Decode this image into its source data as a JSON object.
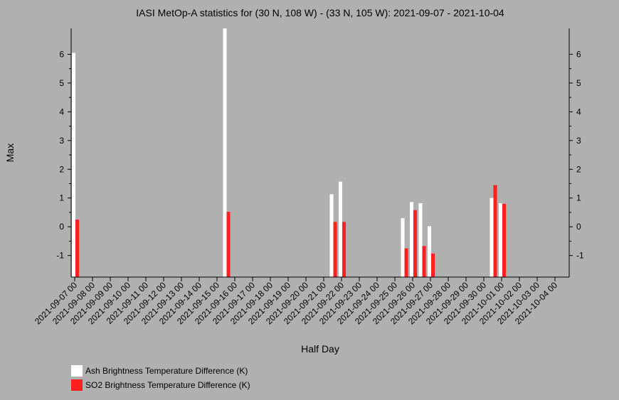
{
  "chart_data": {
    "type": "bar",
    "title": "IASI MetOp-A statistics for (30 N, 108 W) - (33 N, 105 W): 2021-09-07 - 2021-10-04",
    "xlabel": "Half Day",
    "ylabel": "Max",
    "ylim": [
      -1.75,
      6.9
    ],
    "yticks": [
      -1,
      0,
      1,
      2,
      3,
      4,
      5,
      6
    ],
    "grid": false,
    "legend_position": "bottom-left",
    "x_tick_labels": [
      "2021-09-07 00",
      "2021-09-08 00",
      "2021-09-09 00",
      "2021-09-10 00",
      "2021-09-11 00",
      "2021-09-12 00",
      "2021-09-13 00",
      "2021-09-14 00",
      "2021-09-15 00",
      "2021-09-16 00",
      "2021-09-17 00",
      "2021-09-18 00",
      "2021-09-19 00",
      "2021-09-20 00",
      "2021-09-21 00",
      "2021-09-22 00",
      "2021-09-23 00",
      "2021-09-24 00",
      "2021-09-25 00",
      "2021-09-26 00",
      "2021-09-27 00",
      "2021-09-28 00",
      "2021-09-29 00",
      "2021-09-30 00",
      "2021-10-01 00",
      "2021-10-02 00",
      "2021-10-03 00",
      "2021-10-04 00"
    ],
    "series": [
      {
        "name": "Ash Brightness Temperature Difference (K)",
        "color": "#ffffff",
        "points": [
          {
            "x": "2021-09-07 00",
            "y": 6.05
          },
          {
            "x": "2021-09-15 12",
            "y": 6.9
          },
          {
            "x": "2021-09-21 12",
            "y": 1.13
          },
          {
            "x": "2021-09-22 00",
            "y": 1.57
          },
          {
            "x": "2021-09-25 12",
            "y": 0.3
          },
          {
            "x": "2021-09-26 00",
            "y": 0.86
          },
          {
            "x": "2021-09-26 12",
            "y": 0.82
          },
          {
            "x": "2021-09-27 00",
            "y": 0.02
          },
          {
            "x": "2021-09-30 12",
            "y": 1.0
          },
          {
            "x": "2021-10-01 00",
            "y": 0.82
          }
        ]
      },
      {
        "name": "SO2 Brightness Temperature Difference (K)",
        "color": "#ff2020",
        "points": [
          {
            "x": "2021-09-07 00",
            "y": 0.25
          },
          {
            "x": "2021-09-15 12",
            "y": 0.52
          },
          {
            "x": "2021-09-21 12",
            "y": 0.17
          },
          {
            "x": "2021-09-22 00",
            "y": 0.17
          },
          {
            "x": "2021-09-25 12",
            "y": -0.75
          },
          {
            "x": "2021-09-26 00",
            "y": 0.58
          },
          {
            "x": "2021-09-26 12",
            "y": -0.67
          },
          {
            "x": "2021-09-27 00",
            "y": -0.93
          },
          {
            "x": "2021-09-30 12",
            "y": 1.45
          },
          {
            "x": "2021-10-01 00",
            "y": 0.8
          }
        ]
      }
    ]
  }
}
